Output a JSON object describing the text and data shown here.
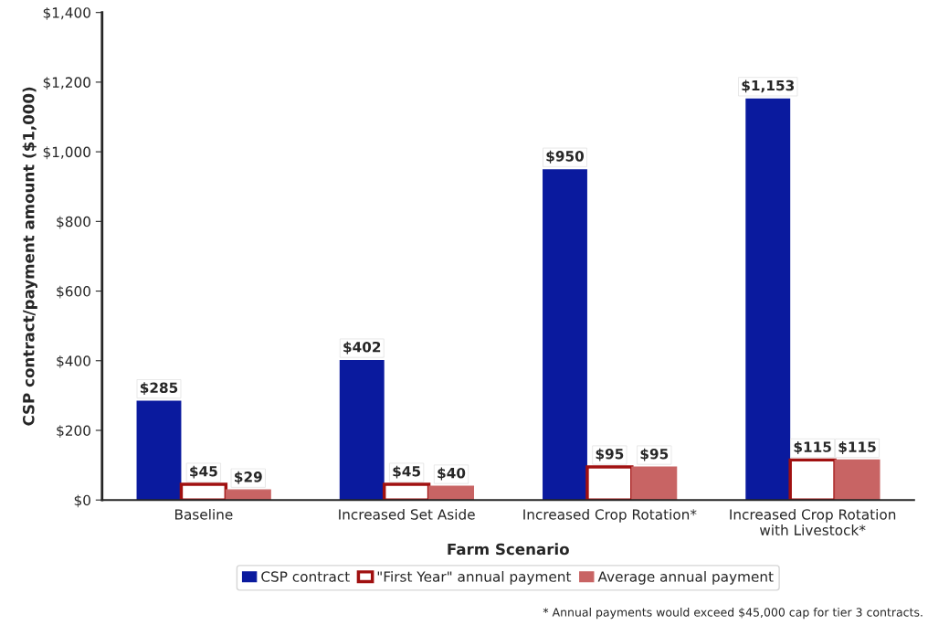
{
  "chart_data": {
    "type": "bar",
    "xlabel": "Farm Scenario",
    "ylabel": "CSP contract/payment amount ($1,000)",
    "categories": [
      "Baseline",
      "Increased Set Aside",
      "Increased Crop Rotation*",
      "Increased Crop Rotation\nwith Livestock*"
    ],
    "series": [
      {
        "name": "CSP contract",
        "color": "#0a1a9e",
        "values": [
          285,
          402,
          950,
          1153
        ],
        "value_labels": [
          "$285",
          "$402",
          "$950",
          "$1,153"
        ]
      },
      {
        "name": "\"First Year\" annual payment",
        "color": "#ffffff",
        "values": [
          45,
          45,
          95,
          115
        ],
        "value_labels": [
          "$45",
          "$45",
          "$95",
          "$115"
        ]
      },
      {
        "name": "Average annual payment",
        "color": "#c86464",
        "values": [
          29,
          40,
          95,
          115
        ],
        "value_labels": [
          "$29",
          "$40",
          "$95",
          "$115"
        ]
      }
    ],
    "ylim": [
      0,
      1400
    ],
    "yticks": [
      {
        "value": 0,
        "label": "$0"
      },
      {
        "value": 200,
        "label": "$200"
      },
      {
        "value": 400,
        "label": "$400"
      },
      {
        "value": 600,
        "label": "$600"
      },
      {
        "value": 800,
        "label": "$800"
      },
      {
        "value": 1000,
        "label": "$1,000"
      },
      {
        "value": 1200,
        "label": "$1,200"
      },
      {
        "value": 1400,
        "label": "$1,400"
      }
    ],
    "grid": false,
    "legend": "bottom",
    "annotations": [
      "* Annual payments would exceed $45,000 cap for tier 3 contracts."
    ]
  }
}
